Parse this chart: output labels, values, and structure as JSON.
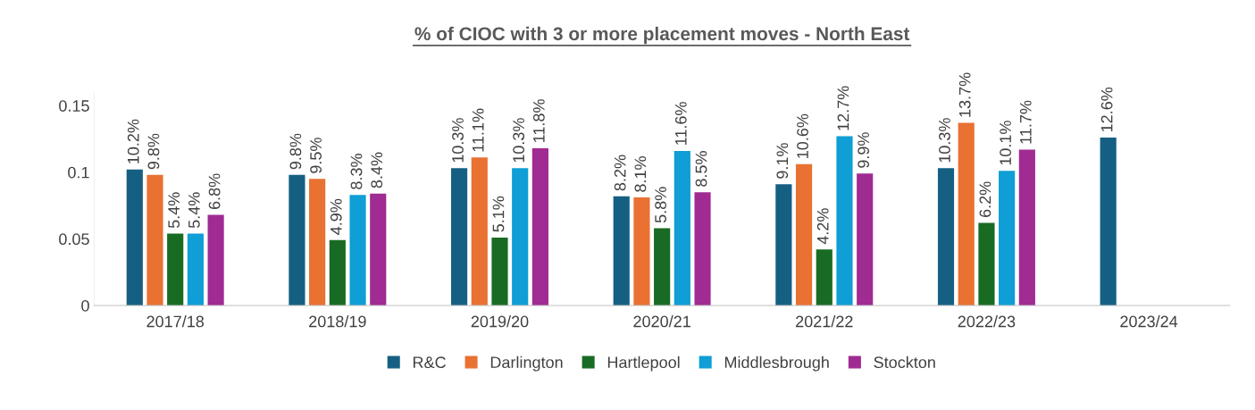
{
  "chart_data": {
    "type": "bar",
    "title": "% of CIOC with 3 or more placement moves - North East",
    "categories": [
      "2017/18",
      "2018/19",
      "2019/20",
      "2020/21",
      "2021/22",
      "2022/23",
      "2023/24"
    ],
    "series": [
      {
        "name": "R&C",
        "color": "#156082",
        "values": [
          0.102,
          0.098,
          0.103,
          0.082,
          0.091,
          0.103,
          0.126
        ],
        "value_labels": [
          "10.2%",
          "9.8%",
          "10.3%",
          "8.2%",
          "9.1%",
          "10.3%",
          "12.6%"
        ]
      },
      {
        "name": "Darlington",
        "color": "#e97132",
        "values": [
          0.098,
          0.095,
          0.111,
          0.081,
          0.106,
          0.137,
          null
        ],
        "value_labels": [
          "9.8%",
          "9.5%",
          "11.1%",
          "8.1%",
          "10.6%",
          "13.7%",
          null
        ]
      },
      {
        "name": "Hartlepool",
        "color": "#196b24",
        "values": [
          0.054,
          0.049,
          0.051,
          0.058,
          0.042,
          0.062,
          null
        ],
        "value_labels": [
          "5.4%",
          "4.9%",
          "5.1%",
          "5.8%",
          "4.2%",
          "6.2%",
          null
        ]
      },
      {
        "name": "Middlesbrough",
        "color": "#0f9ed5",
        "values": [
          0.054,
          0.083,
          0.103,
          0.116,
          0.127,
          0.101,
          null
        ],
        "value_labels": [
          "5.4%",
          "8.3%",
          "10.3%",
          "11.6%",
          "12.7%",
          "10.1%",
          null
        ]
      },
      {
        "name": "Stockton",
        "color": "#a02b93",
        "values": [
          0.068,
          0.084,
          0.118,
          0.085,
          0.099,
          0.117,
          null
        ],
        "value_labels": [
          "6.8%",
          "8.4%",
          "11.8%",
          "8.5%",
          "9.9%",
          "11.7%",
          null
        ]
      }
    ],
    "ylim": [
      0,
      0.16
    ],
    "yticks": [
      0,
      0.05,
      0.1,
      0.15
    ],
    "grid": false,
    "legend": "bottom"
  }
}
